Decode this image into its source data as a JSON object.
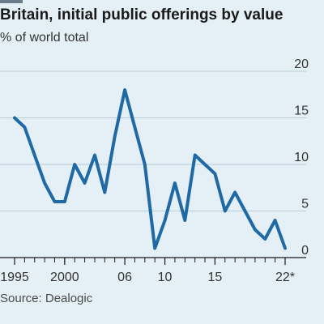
{
  "header": {
    "title": "Britain, initial public offerings by value",
    "subtitle": "% of world total"
  },
  "footer": {
    "source": "Source: Dealogic"
  },
  "colors": {
    "background": "#e4eff6",
    "line": "#1f6aa5",
    "grid": "#b9ccd9",
    "axis": "#1a1a1a"
  },
  "chart_data": {
    "type": "line",
    "title": "Britain, initial public offerings by value",
    "ylabel": "% of world total",
    "xlabel": "",
    "ylim": [
      0,
      20
    ],
    "xlim": [
      1995,
      2022
    ],
    "y_ticks": [
      0,
      5,
      10,
      15,
      20
    ],
    "x_ticks": [
      {
        "value": 1995,
        "label": "1995"
      },
      {
        "value": 2000,
        "label": "2000"
      },
      {
        "value": 2006,
        "label": "06"
      },
      {
        "value": 2010,
        "label": "10"
      },
      {
        "value": 2015,
        "label": "15"
      },
      {
        "value": 2022,
        "label": "22*"
      }
    ],
    "grid": true,
    "series": [
      {
        "x": [
          1995,
          1996,
          1997,
          1998,
          1999,
          2000,
          2001,
          2002,
          2003,
          2004,
          2005,
          2006,
          2007,
          2008,
          2009,
          2010,
          2011,
          2012,
          2013,
          2014,
          2015,
          2016,
          2017,
          2018,
          2019,
          2020,
          2021,
          2022
        ],
        "y": [
          15,
          14,
          11,
          8,
          6,
          6,
          10,
          8,
          11,
          7,
          13,
          18,
          14,
          10,
          1,
          4,
          8,
          4,
          11,
          10,
          9,
          5,
          7,
          5,
          3,
          2,
          4,
          1
        ]
      }
    ]
  }
}
